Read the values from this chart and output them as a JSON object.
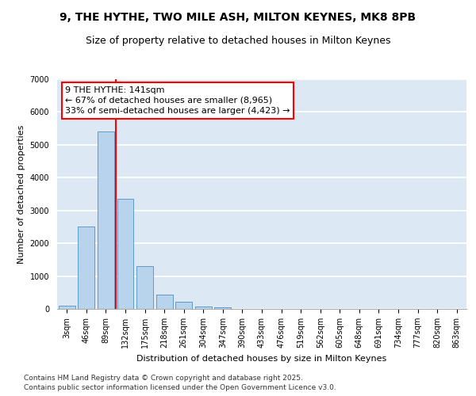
{
  "title1": "9, THE HYTHE, TWO MILE ASH, MILTON KEYNES, MK8 8PB",
  "title2": "Size of property relative to detached houses in Milton Keynes",
  "xlabel": "Distribution of detached houses by size in Milton Keynes",
  "ylabel": "Number of detached properties",
  "categories": [
    "3sqm",
    "46sqm",
    "89sqm",
    "132sqm",
    "175sqm",
    "218sqm",
    "261sqm",
    "304sqm",
    "347sqm",
    "390sqm",
    "433sqm",
    "476sqm",
    "519sqm",
    "562sqm",
    "605sqm",
    "648sqm",
    "691sqm",
    "734sqm",
    "777sqm",
    "820sqm",
    "863sqm"
  ],
  "values": [
    100,
    2500,
    5400,
    3350,
    1300,
    430,
    210,
    80,
    40,
    0,
    0,
    0,
    0,
    0,
    0,
    0,
    0,
    0,
    0,
    0,
    0
  ],
  "bar_color": "#b8d4ec",
  "bar_edge_color": "#5090c0",
  "vline_color": "red",
  "vline_pos": 2.5,
  "annotation_text": "9 THE HYTHE: 141sqm\n← 67% of detached houses are smaller (8,965)\n33% of semi-detached houses are larger (4,423) →",
  "annotation_box_color": "white",
  "annotation_box_edge_color": "red",
  "ylim": [
    0,
    7000
  ],
  "yticks": [
    0,
    1000,
    2000,
    3000,
    4000,
    5000,
    6000,
    7000
  ],
  "bg_color": "#dde8f5",
  "grid_color": "white",
  "footer1": "Contains HM Land Registry data © Crown copyright and database right 2025.",
  "footer2": "Contains public sector information licensed under the Open Government Licence v3.0.",
  "title_fontsize": 10,
  "subtitle_fontsize": 9,
  "axis_label_fontsize": 8,
  "tick_fontsize": 7,
  "annotation_fontsize": 8,
  "footer_fontsize": 6.5
}
